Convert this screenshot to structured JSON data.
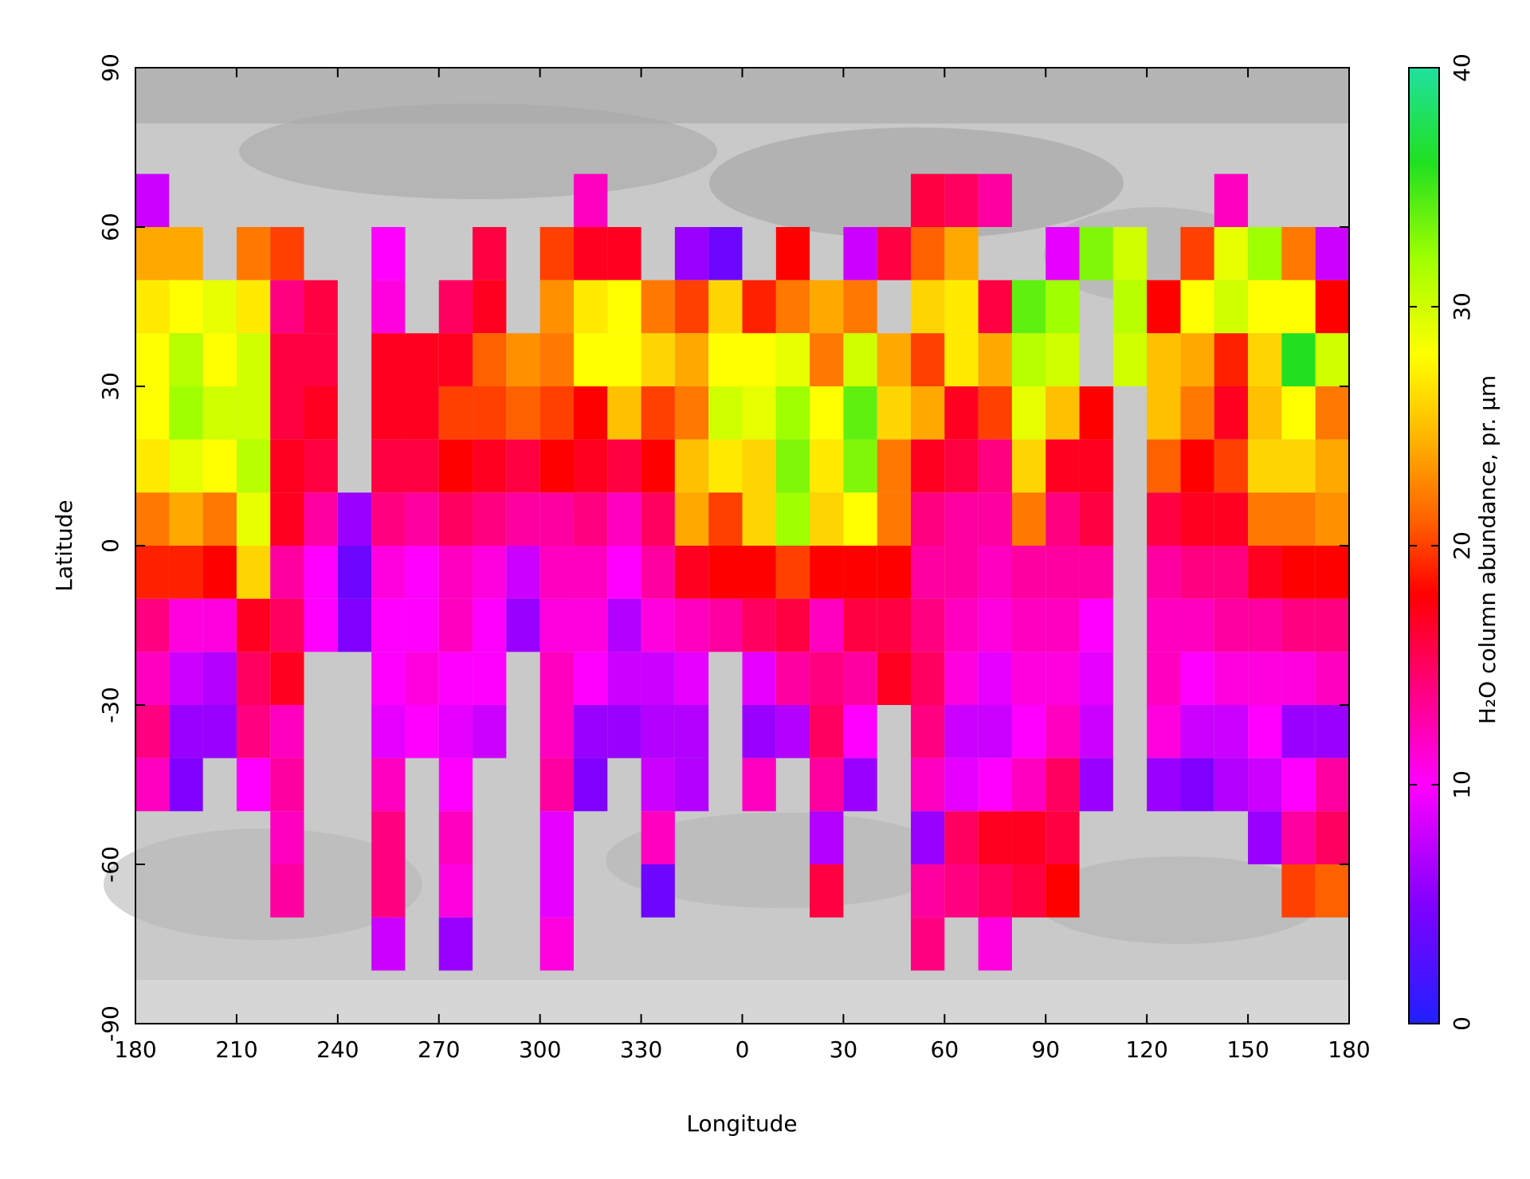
{
  "chart_data": {
    "type": "heatmap",
    "xlabel": "Longitude",
    "ylabel": "Latitude",
    "colorbar_label": "H₂O column abundance, pr. μm",
    "xlim": [
      -180,
      180
    ],
    "ylim": [
      -90,
      90
    ],
    "xticks": [
      {
        "value": -180,
        "label": "180"
      },
      {
        "value": -150,
        "label": "210"
      },
      {
        "value": -120,
        "label": "240"
      },
      {
        "value": -90,
        "label": "270"
      },
      {
        "value": -60,
        "label": "300"
      },
      {
        "value": -30,
        "label": "330"
      },
      0,
      30,
      60,
      90,
      120,
      150,
      180
    ],
    "yticks": [
      -90,
      -60,
      -30,
      0,
      30,
      60,
      90
    ],
    "zlim": [
      0,
      40
    ],
    "zticks": [
      0,
      10,
      20,
      30,
      40
    ],
    "colorscale": [
      [
        0,
        "#2020ff"
      ],
      [
        5,
        "#8000ff"
      ],
      [
        10,
        "#ff00ff"
      ],
      [
        14,
        "#ff0080"
      ],
      [
        18,
        "#ff0000"
      ],
      [
        21,
        "#ff6000"
      ],
      [
        25,
        "#ffc000"
      ],
      [
        28,
        "#ffff00"
      ],
      [
        32,
        "#a0ff00"
      ],
      [
        36,
        "#20e020"
      ],
      [
        40,
        "#20e0a0"
      ]
    ],
    "x": [
      -175,
      -165,
      -155,
      -145,
      -135,
      -125,
      -115,
      -105,
      -95,
      -85,
      -75,
      -65,
      -55,
      -45,
      -35,
      -25,
      -15,
      -5,
      5,
      15,
      25,
      35,
      45,
      55,
      65,
      75,
      85,
      95,
      105,
      115,
      125,
      135,
      145,
      155,
      165,
      175
    ],
    "y": [
      65,
      55,
      45,
      35,
      25,
      15,
      5,
      -5,
      -15,
      -25,
      -35,
      -45,
      -55,
      -65,
      -75
    ],
    "z": [
      [
        8,
        null,
        null,
        null,
        null,
        null,
        null,
        null,
        null,
        null,
        null,
        null,
        null,
        12,
        null,
        null,
        null,
        null,
        null,
        null,
        null,
        null,
        null,
        16,
        15,
        13,
        null,
        null,
        null,
        null,
        null,
        null,
        12,
        null,
        null,
        null
      ],
      [
        24,
        24,
        null,
        22,
        20,
        null,
        null,
        10,
        null,
        null,
        16,
        null,
        20,
        17,
        17,
        null,
        6,
        4,
        null,
        18,
        null,
        8,
        16,
        21,
        24,
        null,
        null,
        9,
        33,
        30,
        null,
        20,
        29,
        32,
        22,
        8
      ],
      [
        27,
        28,
        29,
        27,
        14,
        16,
        null,
        11,
        null,
        15,
        17,
        null,
        23,
        27,
        28,
        22,
        20,
        26,
        19,
        22,
        24,
        22,
        null,
        26,
        27,
        16,
        34,
        32,
        null,
        31,
        18,
        28,
        30,
        28,
        28,
        18
      ],
      [
        28,
        31,
        28,
        30,
        16,
        16,
        null,
        17,
        17,
        17,
        21,
        23,
        22,
        28,
        28,
        26,
        24,
        28,
        28,
        29,
        22,
        30,
        24,
        20,
        27,
        24,
        31,
        30,
        null,
        30,
        25,
        24,
        19,
        26,
        36,
        30
      ],
      [
        28,
        32,
        30,
        30,
        16,
        17,
        null,
        17,
        17,
        20,
        20,
        21,
        20,
        18,
        25,
        20,
        22,
        30,
        29,
        32,
        28,
        34,
        26,
        24,
        17,
        20,
        29,
        25,
        18,
        null,
        25,
        22,
        17,
        25,
        28,
        22
      ],
      [
        27,
        29,
        28,
        31,
        17,
        16,
        null,
        16,
        16,
        18,
        17,
        16,
        18,
        17,
        16,
        18,
        25,
        27,
        26,
        33,
        27,
        33,
        22,
        17,
        16,
        14,
        26,
        17,
        17,
        null,
        21,
        18,
        20,
        26,
        26,
        24
      ],
      [
        22,
        24,
        22,
        29,
        17,
        13,
        6,
        14,
        13,
        15,
        14,
        13,
        13,
        14,
        12,
        15,
        24,
        20,
        26,
        32,
        26,
        28,
        22,
        14,
        13,
        13,
        22,
        14,
        16,
        null,
        16,
        17,
        17,
        22,
        22,
        23
      ],
      [
        19,
        19,
        18,
        26,
        13,
        10,
        4,
        11,
        10,
        12,
        11,
        8,
        12,
        12,
        10,
        13,
        17,
        18,
        18,
        20,
        18,
        18,
        18,
        13,
        13,
        12,
        13,
        13,
        13,
        null,
        13,
        14,
        14,
        17,
        18,
        18
      ],
      [
        14,
        11,
        11,
        17,
        15,
        10,
        5,
        10,
        10,
        12,
        10,
        6,
        11,
        11,
        7,
        11,
        12,
        13,
        15,
        16,
        12,
        16,
        16,
        14,
        12,
        11,
        12,
        12,
        10,
        null,
        12,
        12,
        13,
        13,
        14,
        14
      ],
      [
        12,
        8,
        7,
        15,
        17,
        null,
        null,
        10,
        11,
        10,
        10,
        null,
        12,
        10,
        8,
        8,
        9,
        null,
        9,
        13,
        14,
        13,
        17,
        15,
        11,
        9,
        11,
        11,
        9,
        null,
        12,
        10,
        11,
        11,
        11,
        12
      ],
      [
        14,
        6,
        6,
        14,
        12,
        null,
        null,
        9,
        10,
        9,
        8,
        null,
        12,
        6,
        6,
        7,
        7,
        null,
        6,
        7,
        15,
        10,
        null,
        14,
        8,
        8,
        10,
        12,
        8,
        null,
        11,
        8,
        8,
        10,
        6,
        6
      ],
      [
        12,
        5,
        null,
        10,
        13,
        null,
        null,
        12,
        null,
        10,
        null,
        null,
        13,
        5,
        null,
        8,
        7,
        null,
        12,
        null,
        13,
        6,
        null,
        12,
        9,
        10,
        12,
        15,
        6,
        null,
        6,
        5,
        7,
        8,
        10,
        13
      ],
      [
        null,
        null,
        null,
        null,
        12,
        null,
        null,
        14,
        null,
        12,
        null,
        null,
        9,
        null,
        null,
        12,
        null,
        null,
        null,
        null,
        7,
        null,
        null,
        6,
        15,
        17,
        17,
        16,
        null,
        null,
        null,
        null,
        null,
        6,
        13,
        15
      ],
      [
        null,
        null,
        null,
        null,
        13,
        null,
        null,
        14,
        null,
        11,
        null,
        null,
        9,
        null,
        null,
        4,
        null,
        null,
        null,
        null,
        16,
        null,
        null,
        13,
        14,
        15,
        16,
        18,
        null,
        null,
        null,
        null,
        null,
        null,
        20,
        21
      ],
      [
        null,
        null,
        null,
        null,
        null,
        null,
        null,
        8,
        null,
        6,
        null,
        null,
        11,
        null,
        null,
        null,
        null,
        null,
        null,
        null,
        null,
        null,
        null,
        14,
        null,
        11,
        null,
        null,
        null,
        null,
        null,
        null,
        null,
        null,
        null,
        null
      ]
    ]
  }
}
